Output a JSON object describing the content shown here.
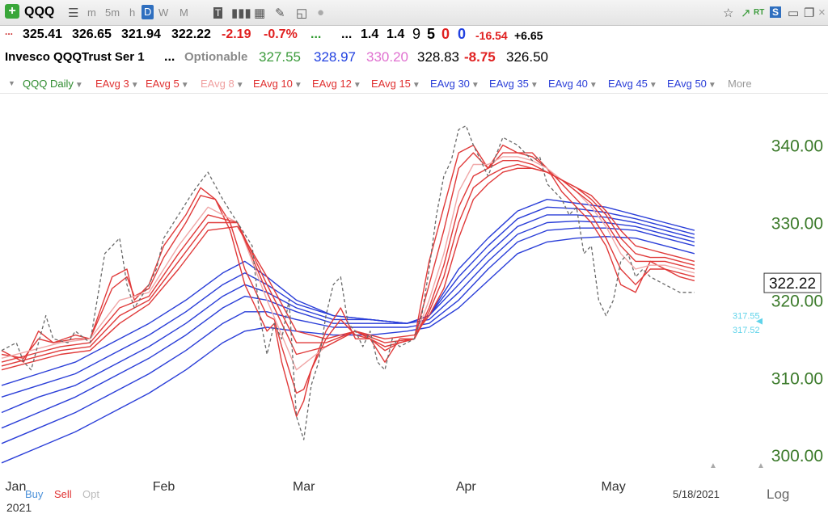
{
  "toolbar": {
    "symbol": "QQQ",
    "add_icon": "plus-icon",
    "periods": [
      "m",
      "5m",
      "h",
      "D",
      "W",
      "M"
    ],
    "active_period": "D"
  },
  "quote_line1": {
    "open": "325.41",
    "high": "326.65",
    "low": "321.94",
    "close": "322.22",
    "change": "-2.19",
    "change_pct": "-0.7%",
    "dots1": "...",
    "dots2": "...",
    "v1": "1.4",
    "v2": "1.4",
    "c1": "9",
    "c2": "5",
    "c3": "0",
    "c4": "0",
    "n1": "-16.54",
    "n2": "+6.65"
  },
  "quote_line2": {
    "name": "Invesco QQQTrust Ser 1",
    "dots": "...",
    "optionable": "Optionable",
    "p1": "327.55",
    "p2": "328.97",
    "p3": "330.20",
    "p4": "328.83",
    "p5": "-8.75",
    "p6": "326.50"
  },
  "studies": [
    {
      "label": "QQQ Daily",
      "color": "#2e8b2e"
    },
    {
      "label": "EAvg 3",
      "color": "#e03030"
    },
    {
      "label": "EAvg 5",
      "color": "#e03030"
    },
    {
      "label": "EAvg 8",
      "color": "#f0a0a0"
    },
    {
      "label": "EAvg 10",
      "color": "#e03030"
    },
    {
      "label": "EAvg 12",
      "color": "#e03030"
    },
    {
      "label": "EAvg 15",
      "color": "#e03030"
    },
    {
      "label": "EAvg 30",
      "color": "#2a3ed8"
    },
    {
      "label": "EAvg 35",
      "color": "#2a3ed8"
    },
    {
      "label": "EAvg 40",
      "color": "#2a3ed8"
    },
    {
      "label": "EAvg 45",
      "color": "#2a3ed8"
    },
    {
      "label": "EAvg 50",
      "color": "#2a3ed8"
    }
  ],
  "more_label": "More",
  "bottom": {
    "buy": "Buy",
    "sell": "Sell",
    "opt": "Opt",
    "year": "2021",
    "date": "5/18/2021",
    "log": "Log"
  },
  "chart_data": {
    "type": "line",
    "y_ticks": [
      300,
      310,
      320,
      330,
      340
    ],
    "y_tick_labels": [
      "300.00",
      "310.00",
      "320.00",
      "330.00",
      "340.00"
    ],
    "ylim": [
      297,
      346
    ],
    "x_labels": [
      {
        "label": "Jan",
        "x": 0.5
      },
      {
        "label": "Feb",
        "x": 22
      },
      {
        "label": "Mar",
        "x": 41
      },
      {
        "label": "Apr",
        "x": 63
      },
      {
        "label": "May",
        "x": 83
      }
    ],
    "xlim": [
      0,
      95
    ],
    "last_price_label": "322.22",
    "last_price": 322.22,
    "marker_labels": [
      {
        "label": "317.55",
        "value": 318.0
      },
      {
        "label": "317.52",
        "value": 316.2
      }
    ],
    "colors": {
      "price": "#6a6a6a",
      "fast_red": "#e03a3a",
      "slow_blue": "#2a3ed8",
      "light_red": "#f0a8a8",
      "axis_label": "#3b7a2a",
      "marker": "#5fd3ea"
    },
    "series": [
      {
        "label": "QQQ Daily",
        "type": "price",
        "x": [
          0,
          2,
          3,
          4,
          6,
          7,
          9,
          10,
          12,
          14,
          16,
          17,
          18,
          20,
          21,
          22,
          24,
          26,
          28,
          30,
          32,
          34,
          35,
          36,
          37,
          38,
          39,
          40,
          41,
          42,
          43,
          44,
          45,
          46,
          47,
          48,
          49,
          50,
          51,
          52,
          53,
          54,
          55,
          56,
          57,
          58,
          59,
          60,
          61,
          62,
          63,
          64,
          65,
          66,
          68,
          70,
          71,
          72,
          73,
          74,
          75,
          76,
          77,
          78,
          79,
          80,
          81,
          82,
          83,
          84,
          85,
          86,
          87,
          88,
          89,
          90,
          91,
          92,
          93,
          94
        ],
        "y": [
          313.5,
          314.5,
          312,
          311,
          318,
          315,
          314.5,
          316,
          314.5,
          326,
          328,
          322,
          319,
          322,
          324,
          328,
          331,
          334,
          336.5,
          333,
          330,
          327,
          318,
          313,
          317,
          315,
          320,
          305,
          302,
          309,
          312,
          318,
          322,
          323,
          317,
          316,
          314,
          316,
          312,
          311,
          315,
          314,
          314.5,
          315,
          318,
          324,
          331,
          336,
          338,
          342,
          342.5,
          340,
          338,
          336,
          341,
          340,
          339,
          338,
          338.5,
          335,
          334,
          333,
          331,
          332,
          326,
          327,
          320,
          318,
          320,
          325,
          326,
          323,
          324,
          323,
          322.5,
          322,
          321.5,
          321,
          321,
          321
        ]
      },
      {
        "label": "EAvg 3",
        "type": "red",
        "x": [
          0,
          3,
          5,
          7,
          10,
          12,
          15,
          17,
          18,
          20,
          22,
          25,
          27,
          29,
          31,
          33,
          35,
          36,
          37,
          38,
          40,
          41,
          42,
          44,
          46,
          48,
          50,
          52,
          54,
          56,
          58,
          60,
          62,
          64,
          66,
          68,
          70,
          72,
          74,
          76,
          78,
          80,
          82,
          84,
          86,
          88,
          90,
          92,
          94
        ],
        "y": [
          313.5,
          312,
          316,
          314.5,
          315.5,
          315,
          323,
          324,
          320,
          322,
          327,
          331,
          334.5,
          333,
          329,
          322,
          318,
          316,
          317,
          312,
          305,
          307,
          311,
          316,
          319,
          315,
          315,
          312,
          315,
          315,
          325,
          332,
          339,
          340,
          337,
          340,
          339,
          339,
          337,
          334,
          332,
          330,
          327,
          322,
          321,
          325,
          324,
          323,
          322.5
        ]
      },
      {
        "label": "EAvg 5",
        "type": "red",
        "x": [
          0,
          3,
          5,
          7,
          10,
          12,
          15,
          17,
          18,
          20,
          22,
          25,
          27,
          29,
          31,
          33,
          35,
          36,
          37,
          38,
          40,
          41,
          42,
          44,
          46,
          48,
          50,
          52,
          54,
          56,
          58,
          60,
          62,
          64,
          66,
          68,
          70,
          72,
          74,
          76,
          78,
          80,
          82,
          84,
          86,
          88,
          90,
          92,
          94
        ],
        "y": [
          313,
          312.5,
          315,
          314.5,
          315,
          315,
          321.5,
          323,
          320.5,
          321.5,
          325.5,
          330,
          333.5,
          333,
          330,
          324,
          320,
          318,
          317.5,
          314,
          308,
          308.5,
          311,
          315,
          317.5,
          315.5,
          315,
          313.5,
          314.5,
          315,
          322,
          329,
          337,
          339,
          337,
          339,
          339,
          338.5,
          337,
          335,
          333,
          331,
          328,
          324,
          322,
          324,
          324,
          323.5,
          323
        ]
      },
      {
        "label": "EAvg 8",
        "type": "lightred",
        "x": [
          0,
          4,
          8,
          12,
          16,
          20,
          24,
          28,
          32,
          36,
          40,
          44,
          48,
          52,
          56,
          58,
          60,
          62,
          64,
          66,
          68,
          70,
          72,
          74,
          76,
          78,
          80,
          82,
          84,
          86,
          88,
          90,
          92,
          94
        ],
        "y": [
          312.5,
          313.5,
          314.5,
          315,
          320,
          321,
          327,
          332,
          330,
          320,
          311,
          314,
          316,
          314,
          315,
          320,
          326,
          334,
          337.5,
          337.5,
          338.5,
          338.5,
          338,
          337,
          335.5,
          334,
          332,
          329.5,
          326,
          324,
          324.5,
          324.5,
          324,
          323.5
        ]
      },
      {
        "label": "EAvg 10",
        "type": "red",
        "x": [
          0,
          4,
          8,
          12,
          16,
          20,
          24,
          28,
          32,
          36,
          40,
          44,
          48,
          52,
          56,
          58,
          60,
          62,
          64,
          66,
          68,
          70,
          72,
          74,
          76,
          78,
          80,
          82,
          84,
          86,
          88,
          90,
          92,
          94
        ],
        "y": [
          312,
          313,
          314,
          314.5,
          319,
          320.5,
          326,
          331,
          330,
          321,
          313,
          314,
          316,
          314,
          315,
          319,
          324.5,
          332,
          336,
          337,
          338,
          338,
          337.5,
          336.5,
          335.5,
          334,
          332.5,
          330,
          327,
          325,
          325,
          325,
          324.5,
          324
        ]
      },
      {
        "label": "EAvg 12",
        "type": "red",
        "x": [
          0,
          4,
          8,
          12,
          16,
          20,
          24,
          28,
          32,
          36,
          40,
          44,
          48,
          52,
          56,
          58,
          60,
          62,
          64,
          66,
          68,
          70,
          72,
          74,
          76,
          78,
          80,
          82,
          84,
          86,
          88,
          90,
          92,
          94
        ],
        "y": [
          311.5,
          312.5,
          313.5,
          314,
          318,
          320,
          325,
          330,
          330,
          322,
          314.5,
          314.5,
          316,
          314.5,
          315,
          318.5,
          323,
          330,
          334.5,
          336,
          337,
          337.5,
          337,
          336.5,
          335.5,
          334.5,
          333,
          331,
          328,
          326,
          325.5,
          325.5,
          325,
          324.5
        ]
      },
      {
        "label": "EAvg 15",
        "type": "red",
        "x": [
          0,
          4,
          8,
          12,
          16,
          20,
          24,
          28,
          32,
          36,
          40,
          44,
          48,
          52,
          56,
          58,
          60,
          62,
          64,
          66,
          68,
          70,
          72,
          74,
          76,
          78,
          80,
          82,
          84,
          86,
          88,
          90,
          92,
          94
        ],
        "y": [
          311,
          312,
          313,
          313.5,
          317,
          319.5,
          324,
          329,
          329.5,
          323,
          316,
          315,
          316,
          315,
          315.5,
          318,
          321.5,
          328,
          333,
          335,
          336.5,
          337,
          337,
          336.5,
          335.5,
          334.5,
          333.5,
          331.5,
          329,
          327,
          326.5,
          326,
          325.5,
          325
        ]
      },
      {
        "label": "EAvg 30",
        "type": "blue",
        "x": [
          0,
          5,
          10,
          15,
          20,
          25,
          30,
          33,
          36,
          40,
          45,
          50,
          55,
          58,
          62,
          66,
          70,
          74,
          78,
          82,
          86,
          90,
          94
        ],
        "y": [
          309,
          310.5,
          312,
          314.5,
          317,
          320,
          323.5,
          325,
          323,
          320,
          318,
          317.5,
          317,
          318,
          324,
          328,
          331.5,
          333,
          332.5,
          332,
          331,
          330,
          329
        ]
      },
      {
        "label": "EAvg 35",
        "type": "blue",
        "x": [
          0,
          5,
          10,
          15,
          20,
          25,
          30,
          33,
          36,
          40,
          45,
          50,
          55,
          58,
          62,
          66,
          70,
          74,
          78,
          82,
          86,
          90,
          94
        ],
        "y": [
          307.5,
          309,
          310.5,
          313,
          315.5,
          318.5,
          322,
          323.5,
          322,
          319.5,
          318,
          317.5,
          317,
          318,
          323,
          327,
          330.5,
          332,
          331.8,
          331.3,
          330.5,
          329.5,
          328.5
        ]
      },
      {
        "label": "EAvg 40",
        "type": "blue",
        "x": [
          0,
          5,
          10,
          15,
          20,
          25,
          30,
          33,
          36,
          40,
          45,
          50,
          55,
          58,
          62,
          66,
          70,
          74,
          78,
          82,
          86,
          90,
          94
        ],
        "y": [
          305.5,
          307.5,
          309,
          311.5,
          314,
          317,
          320.5,
          322,
          321,
          319,
          317.5,
          317.5,
          317,
          318,
          322,
          326,
          329.5,
          331,
          331,
          330.7,
          330,
          329,
          328
        ]
      },
      {
        "label": "EAvg 45",
        "type": "blue",
        "x": [
          0,
          5,
          10,
          15,
          20,
          25,
          30,
          33,
          36,
          40,
          45,
          50,
          55,
          58,
          62,
          66,
          70,
          74,
          78,
          82,
          86,
          90,
          94
        ],
        "y": [
          303.5,
          305.5,
          307.5,
          310,
          312.5,
          315.5,
          319,
          320.5,
          320,
          318.5,
          317,
          317,
          317,
          317.5,
          321,
          325,
          328.5,
          330,
          330.2,
          330,
          329.5,
          328.5,
          327.5
        ]
      },
      {
        "label": "EAvg 50",
        "type": "blue",
        "x": [
          0,
          5,
          10,
          15,
          20,
          25,
          30,
          33,
          36,
          40,
          45,
          50,
          55,
          58,
          62,
          66,
          70,
          74,
          78,
          82,
          86,
          90,
          94
        ],
        "y": [
          301.5,
          303.5,
          305.5,
          308,
          310.5,
          313.5,
          317,
          318.5,
          318.5,
          317.5,
          316.5,
          316.5,
          316.5,
          317,
          320,
          324,
          327.5,
          329,
          329.3,
          329.3,
          329,
          328,
          327
        ]
      },
      {
        "label": "",
        "type": "blue",
        "x": [
          0,
          5,
          10,
          15,
          20,
          25,
          30,
          33,
          36,
          40,
          45,
          50,
          55,
          58,
          62,
          66,
          70,
          74,
          78,
          82,
          86,
          90,
          94
        ],
        "y": [
          299,
          301,
          303,
          305.5,
          308,
          311,
          314.5,
          316,
          316.5,
          316,
          315.5,
          315.5,
          316,
          316.5,
          319,
          322.5,
          326,
          327.5,
          328,
          328.2,
          328,
          327,
          326
        ]
      }
    ]
  }
}
